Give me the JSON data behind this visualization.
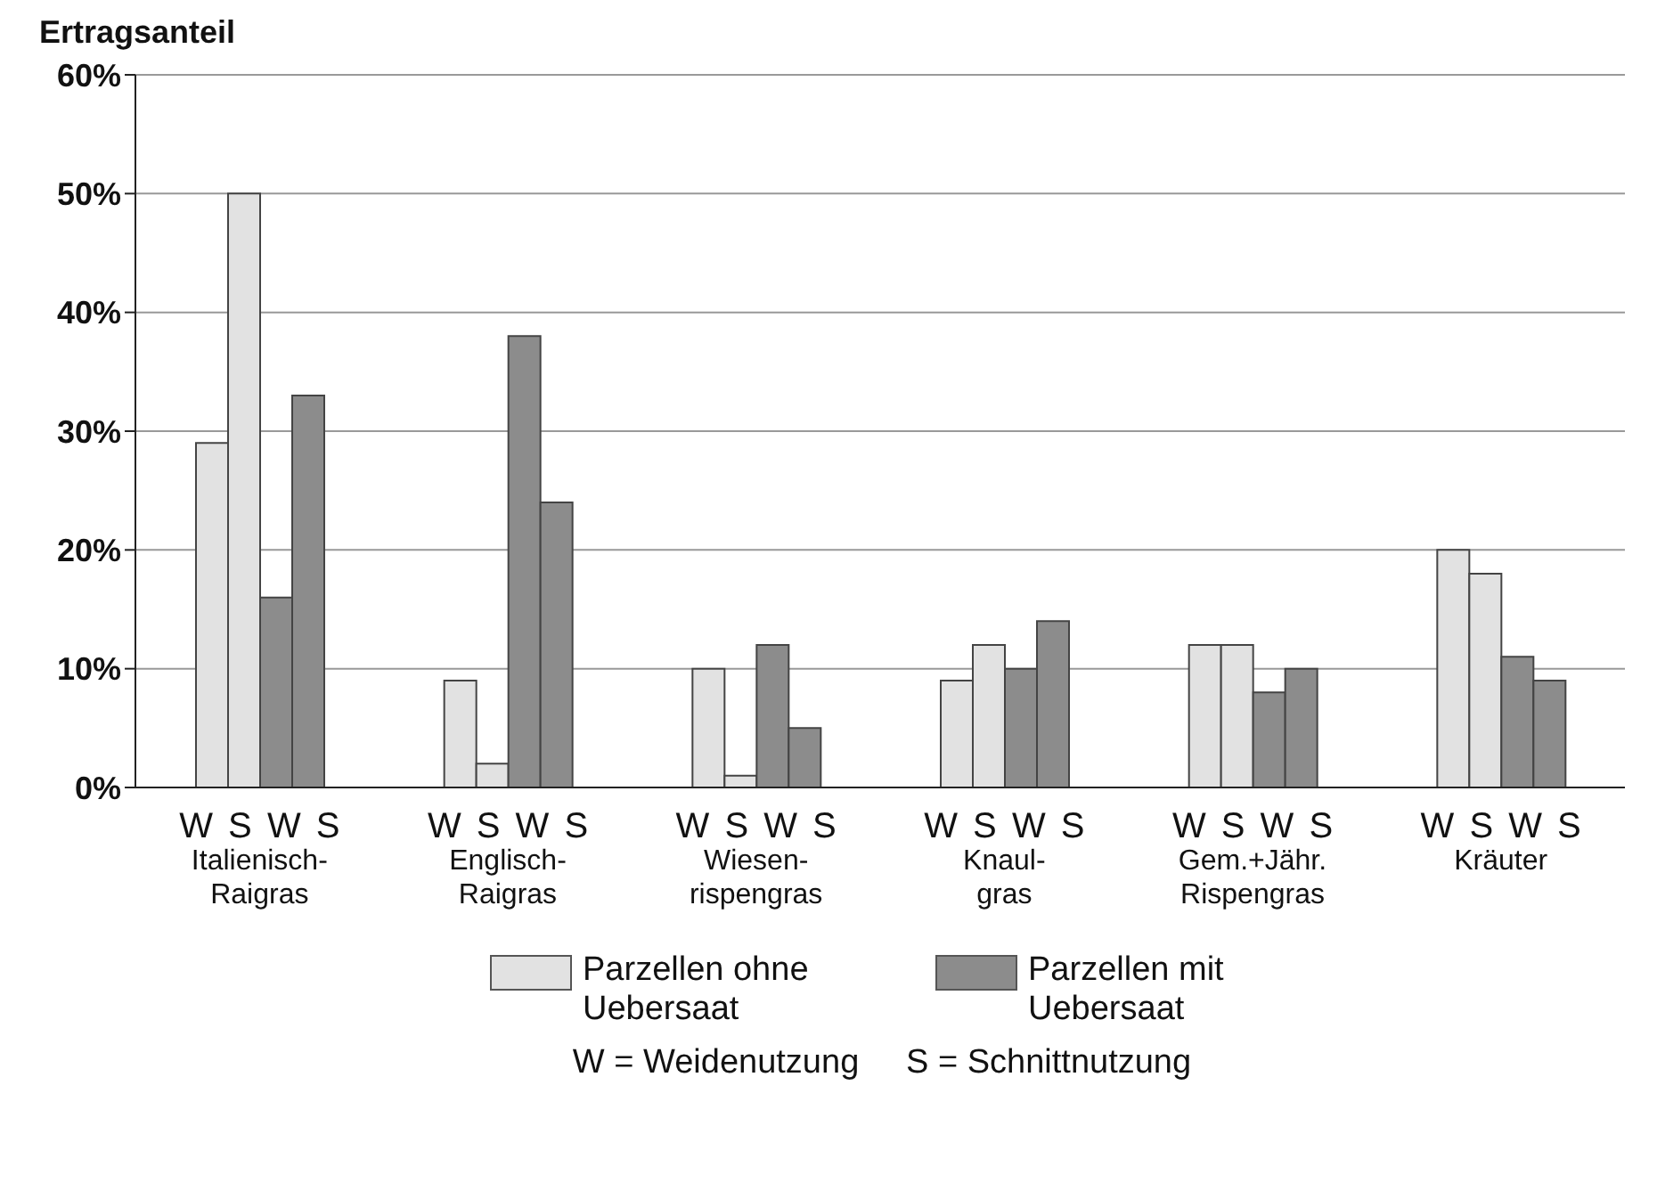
{
  "chart_data": {
    "type": "bar",
    "ylabel": "Ertragsanteil",
    "categories": [
      "W S W S\nItalienisch-\nRaigras",
      "W S W S\nEnglisch-\nRaigras",
      "W S W S\nWiesen-\nrispengras",
      "W S W S\nKnaul-\ngras",
      "W S W S\nGem.+Jähr.\nRispengras",
      "W S W S\nKräuter"
    ],
    "series": [
      {
        "name": "Parzellen ohne Uebersaat",
        "color": "#e2e2e2",
        "values": [
          29,
          9,
          10,
          9,
          12,
          20
        ]
      },
      {
        "color": "#e2e2e2",
        "values": [
          50,
          2,
          1,
          12,
          12,
          18
        ]
      },
      {
        "name": "Parzellen mit Uebersaat",
        "color": "#8c8c8c",
        "values": [
          16,
          38,
          12,
          10,
          8,
          11
        ]
      },
      {
        "color": "#8c8c8c",
        "values": [
          33,
          24,
          5,
          14,
          10,
          9
        ]
      }
    ],
    "ylim": [
      0,
      60
    ],
    "yticks": [
      {
        "value": 0,
        "label": "0%"
      },
      {
        "value": 10,
        "label": "10%"
      },
      {
        "value": 20,
        "label": "20%"
      },
      {
        "value": 30,
        "label": "30%"
      },
      {
        "value": 40,
        "label": "40%"
      },
      {
        "value": 50,
        "label": "50%"
      },
      {
        "value": 60,
        "label": "60%"
      }
    ],
    "grid": "y",
    "legend": "bottom",
    "annotations": [
      "W = Weidenutzung     S = Schnittnutzung"
    ]
  }
}
